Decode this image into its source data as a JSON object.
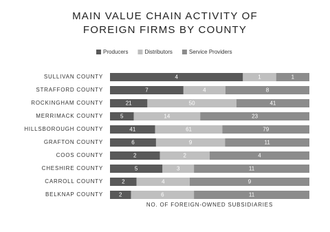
{
  "chart_data": {
    "type": "bar",
    "orientation": "horizontal",
    "stacked": "percent",
    "title": "MAIN VALUE CHAIN ACTIVITY OF FOREIGN FIRMS BY COUNTY",
    "x_label": "NO. OF FOREIGN-OWNED SUBSIDIARIES",
    "categories": [
      "SULLIVAN COUNTY",
      "STRAFFORD COUNTY",
      "ROCKINGHAM COUNTY",
      "MERRIMACK COUNTY",
      "HILLSBOROUGH COUNTY",
      "GRAFTON COUNTY",
      "COOS COUNTY",
      "CHESHIRE COUNTY",
      "CARROLL COUNTY",
      "BELKNAP COUNTY"
    ],
    "series": [
      {
        "name": "Producers",
        "color": "#595959",
        "values": [
          4,
          7,
          21,
          5,
          41,
          6,
          2,
          5,
          2,
          2
        ]
      },
      {
        "name": "Distributors",
        "color": "#bfbfbf",
        "values": [
          1,
          4,
          50,
          14,
          61,
          9,
          2,
          3,
          4,
          6
        ]
      },
      {
        "name": "Service Providers",
        "color": "#8c8c8c",
        "values": [
          1,
          8,
          41,
          23,
          79,
          11,
          4,
          11,
          9,
          11
        ]
      }
    ],
    "legend": "top"
  }
}
